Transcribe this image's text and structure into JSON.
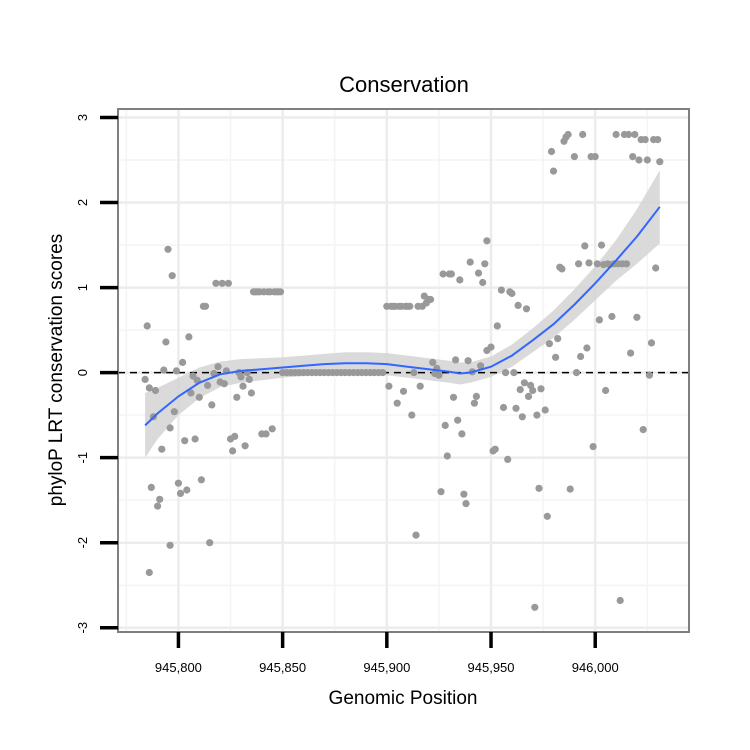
{
  "chart_data": {
    "type": "scatter",
    "title": "Conservation",
    "xlabel": "Genomic Position",
    "ylabel": "phyloP LRT conservation scores",
    "xlim": [
      945771,
      946045
    ],
    "ylim": [
      -3.05,
      3.1
    ],
    "x_ticks": [
      {
        "value": 945800,
        "label": "945,800"
      },
      {
        "value": 945850,
        "label": "945,850"
      },
      {
        "value": 945900,
        "label": "945,900"
      },
      {
        "value": 945950,
        "label": "945,950"
      },
      {
        "value": 946000,
        "label": "946,000"
      }
    ],
    "y_ticks": [
      {
        "value": 3,
        "label": "3"
      },
      {
        "value": 2,
        "label": "2"
      },
      {
        "value": 1,
        "label": "1"
      },
      {
        "value": 0,
        "label": "0"
      },
      {
        "value": -1,
        "label": "-1"
      },
      {
        "value": -2,
        "label": "-2"
      },
      {
        "value": -3,
        "label": "-3"
      }
    ],
    "x_minor_gridlines": [
      945775,
      945825,
      945875,
      945925,
      945975,
      946025
    ],
    "y_minor_gridlines": [
      2.5,
      1.5,
      0.5,
      -0.5,
      -1.5,
      -2.5
    ],
    "reference_line": {
      "y": 0,
      "style": "dashed",
      "color": "#000000"
    },
    "point_color": "#999999",
    "fit_color": "#3366ff",
    "band_color": "#d3d3d3",
    "points": [
      [
        945784,
        -0.08
      ],
      [
        945785,
        0.55
      ],
      [
        945786,
        -0.18
      ],
      [
        945786,
        -2.35
      ],
      [
        945787,
        -1.35
      ],
      [
        945788,
        -0.52
      ],
      [
        945789,
        -0.21
      ],
      [
        945790,
        -1.57
      ],
      [
        945791,
        -1.49
      ],
      [
        945792,
        -0.9
      ],
      [
        945793,
        0.03
      ],
      [
        945794,
        0.36
      ],
      [
        945795,
        1.45
      ],
      [
        945796,
        -0.65
      ],
      [
        945796,
        -2.03
      ],
      [
        945797,
        1.14
      ],
      [
        945798,
        -0.46
      ],
      [
        945799,
        0.02
      ],
      [
        945800,
        -1.3
      ],
      [
        945801,
        -1.42
      ],
      [
        945802,
        0.12
      ],
      [
        945803,
        -0.8
      ],
      [
        945804,
        -1.38
      ],
      [
        945805,
        0.42
      ],
      [
        945806,
        -0.24
      ],
      [
        945807,
        -0.04
      ],
      [
        945808,
        -0.78
      ],
      [
        945809,
        -0.09
      ],
      [
        945810,
        -0.29
      ],
      [
        945811,
        -1.26
      ],
      [
        945812,
        0.78
      ],
      [
        945813,
        0.78
      ],
      [
        945814,
        -0.15
      ],
      [
        945815,
        -2.0
      ],
      [
        945816,
        -0.38
      ],
      [
        945817,
        -0.01
      ],
      [
        945818,
        1.05
      ],
      [
        945819,
        0.07
      ],
      [
        945820,
        -0.11
      ],
      [
        945821,
        1.05
      ],
      [
        945822,
        -0.13
      ],
      [
        945823,
        0.02
      ],
      [
        945824,
        1.05
      ],
      [
        945825,
        -0.78
      ],
      [
        945826,
        -0.92
      ],
      [
        945827,
        -0.75
      ],
      [
        945828,
        -0.29
      ],
      [
        945829,
        0.0
      ],
      [
        945830,
        -0.05
      ],
      [
        945831,
        -0.16
      ],
      [
        945832,
        -0.86
      ],
      [
        945833,
        0.0
      ],
      [
        945834,
        -0.08
      ],
      [
        945835,
        -0.24
      ],
      [
        945836,
        0.95
      ],
      [
        945837,
        0.95
      ],
      [
        945838,
        0.95
      ],
      [
        945839,
        0.95
      ],
      [
        945840,
        -0.72
      ],
      [
        945841,
        0.95
      ],
      [
        945842,
        -0.72
      ],
      [
        945843,
        0.95
      ],
      [
        945844,
        0.95
      ],
      [
        945845,
        -0.66
      ],
      [
        945846,
        0.95
      ],
      [
        945847,
        0.95
      ],
      [
        945848,
        0.95
      ],
      [
        945849,
        0.95
      ],
      [
        945850,
        0.0
      ],
      [
        945852,
        0.0
      ],
      [
        945854,
        0.0
      ],
      [
        945856,
        0.0
      ],
      [
        945858,
        0.0
      ],
      [
        945860,
        0.0
      ],
      [
        945862,
        0.0
      ],
      [
        945864,
        0.0
      ],
      [
        945866,
        0.0
      ],
      [
        945868,
        0.0
      ],
      [
        945870,
        0.0
      ],
      [
        945872,
        0.0
      ],
      [
        945874,
        0.0
      ],
      [
        945876,
        0.0
      ],
      [
        945878,
        0.0
      ],
      [
        945880,
        0.0
      ],
      [
        945882,
        0.0
      ],
      [
        945884,
        0.0
      ],
      [
        945886,
        0.0
      ],
      [
        945888,
        0.0
      ],
      [
        945890,
        0.0
      ],
      [
        945892,
        0.0
      ],
      [
        945894,
        0.0
      ],
      [
        945896,
        0.0
      ],
      [
        945898,
        0.0
      ],
      [
        945900,
        0.78
      ],
      [
        945901,
        -0.16
      ],
      [
        945902,
        0.78
      ],
      [
        945903,
        0.78
      ],
      [
        945904,
        0.78
      ],
      [
        945905,
        -0.36
      ],
      [
        945906,
        0.78
      ],
      [
        945907,
        0.78
      ],
      [
        945908,
        -0.22
      ],
      [
        945909,
        0.78
      ],
      [
        945910,
        0.78
      ],
      [
        945911,
        0.78
      ],
      [
        945912,
        -0.5
      ],
      [
        945913,
        0.0
      ],
      [
        945914,
        -1.91
      ],
      [
        945915,
        0.78
      ],
      [
        945916,
        -0.16
      ],
      [
        945917,
        0.78
      ],
      [
        945918,
        0.9
      ],
      [
        945919,
        0.82
      ],
      [
        945920,
        0.86
      ],
      [
        945921,
        0.86
      ],
      [
        945922,
        0.12
      ],
      [
        945923,
        -0.01
      ],
      [
        945924,
        0.05
      ],
      [
        945925,
        -0.03
      ],
      [
        945926,
        -1.4
      ],
      [
        945927,
        1.16
      ],
      [
        945928,
        -0.62
      ],
      [
        945929,
        -0.98
      ],
      [
        945930,
        1.16
      ],
      [
        945931,
        1.16
      ],
      [
        945932,
        -0.29
      ],
      [
        945933,
        0.15
      ],
      [
        945934,
        -0.56
      ],
      [
        945935,
        1.09
      ],
      [
        945936,
        -0.72
      ],
      [
        945937,
        -1.43
      ],
      [
        945938,
        -1.54
      ],
      [
        945939,
        0.14
      ],
      [
        945940,
        1.3
      ],
      [
        945941,
        0.01
      ],
      [
        945942,
        -0.36
      ],
      [
        945943,
        -0.28
      ],
      [
        945944,
        1.17
      ],
      [
        945945,
        0.08
      ],
      [
        945946,
        1.06
      ],
      [
        945947,
        1.28
      ],
      [
        945948,
        0.26
      ],
      [
        945948,
        1.55
      ],
      [
        945950,
        0.3
      ],
      [
        945951,
        -0.92
      ],
      [
        945952,
        -0.9
      ],
      [
        945953,
        0.55
      ],
      [
        945955,
        0.97
      ],
      [
        945956,
        -0.41
      ],
      [
        945957,
        0.0
      ],
      [
        945958,
        -1.02
      ],
      [
        945959,
        0.95
      ],
      [
        945960,
        0.93
      ],
      [
        945961,
        0.0
      ],
      [
        945962,
        -0.42
      ],
      [
        945963,
        0.79
      ],
      [
        945964,
        -0.2
      ],
      [
        945965,
        -0.52
      ],
      [
        945966,
        -0.12
      ],
      [
        945967,
        0.75
      ],
      [
        945968,
        -0.28
      ],
      [
        945969,
        -0.15
      ],
      [
        945970,
        -0.21
      ],
      [
        945971,
        -2.76
      ],
      [
        945972,
        -0.5
      ],
      [
        945973,
        -1.36
      ],
      [
        945974,
        -0.19
      ],
      [
        945976,
        -0.44
      ],
      [
        945977,
        -1.69
      ],
      [
        945978,
        0.34
      ],
      [
        945979,
        2.6
      ],
      [
        945980,
        2.37
      ],
      [
        945981,
        0.18
      ],
      [
        945982,
        0.4
      ],
      [
        945983,
        1.24
      ],
      [
        945984,
        1.22
      ],
      [
        945985,
        2.72
      ],
      [
        945986,
        2.77
      ],
      [
        945987,
        2.8
      ],
      [
        945988,
        -1.37
      ],
      [
        945990,
        2.54
      ],
      [
        945991,
        0.0
      ],
      [
        945992,
        1.28
      ],
      [
        945993,
        0.19
      ],
      [
        945994,
        2.8
      ],
      [
        945995,
        1.49
      ],
      [
        945996,
        0.29
      ],
      [
        945997,
        1.29
      ],
      [
        945998,
        2.54
      ],
      [
        945999,
        -0.87
      ],
      [
        946000,
        2.54
      ],
      [
        946001,
        1.28
      ],
      [
        946002,
        0.62
      ],
      [
        946003,
        1.5
      ],
      [
        946004,
        1.27
      ],
      [
        946005,
        -0.21
      ],
      [
        946006,
        1.28
      ],
      [
        946007,
        1.27
      ],
      [
        946008,
        0.66
      ],
      [
        946009,
        1.28
      ],
      [
        946010,
        2.8
      ],
      [
        946011,
        1.28
      ],
      [
        946012,
        -2.68
      ],
      [
        946013,
        1.28
      ],
      [
        946014,
        2.8
      ],
      [
        946015,
        1.28
      ],
      [
        946016,
        2.8
      ],
      [
        946017,
        0.23
      ],
      [
        946018,
        2.54
      ],
      [
        946019,
        2.8
      ],
      [
        946020,
        0.65
      ],
      [
        946021,
        2.5
      ],
      [
        946022,
        2.74
      ],
      [
        946023,
        -0.67
      ],
      [
        946024,
        2.74
      ],
      [
        946025,
        2.5
      ],
      [
        946026,
        -0.03
      ],
      [
        946027,
        0.35
      ],
      [
        946028,
        2.74
      ],
      [
        946029,
        1.23
      ],
      [
        946030,
        2.74
      ],
      [
        946031,
        2.48
      ]
    ],
    "fit": [
      [
        945784,
        -0.62
      ],
      [
        945790,
        -0.48
      ],
      [
        945800,
        -0.28
      ],
      [
        945810,
        -0.12
      ],
      [
        945820,
        -0.02
      ],
      [
        945830,
        0.02
      ],
      [
        945840,
        0.04
      ],
      [
        945850,
        0.06
      ],
      [
        945860,
        0.08
      ],
      [
        945870,
        0.1
      ],
      [
        945880,
        0.11
      ],
      [
        945890,
        0.11
      ],
      [
        945900,
        0.1
      ],
      [
        945910,
        0.07
      ],
      [
        945920,
        0.04
      ],
      [
        945930,
        0.01
      ],
      [
        945935,
        -0.01
      ],
      [
        945940,
        0.0
      ],
      [
        945950,
        0.07
      ],
      [
        945960,
        0.2
      ],
      [
        945970,
        0.38
      ],
      [
        945980,
        0.57
      ],
      [
        945990,
        0.8
      ],
      [
        946000,
        1.05
      ],
      [
        946010,
        1.32
      ],
      [
        946020,
        1.6
      ],
      [
        946031,
        1.95
      ]
    ],
    "band_upper": [
      [
        945784,
        -0.24
      ],
      [
        945790,
        -0.18
      ],
      [
        945800,
        -0.06
      ],
      [
        945810,
        0.06
      ],
      [
        945820,
        0.13
      ],
      [
        945830,
        0.16
      ],
      [
        945840,
        0.17
      ],
      [
        945850,
        0.18
      ],
      [
        945860,
        0.2
      ],
      [
        945870,
        0.22
      ],
      [
        945880,
        0.24
      ],
      [
        945890,
        0.24
      ],
      [
        945900,
        0.23
      ],
      [
        945910,
        0.2
      ],
      [
        945920,
        0.17
      ],
      [
        945930,
        0.14
      ],
      [
        945935,
        0.12
      ],
      [
        945940,
        0.12
      ],
      [
        945950,
        0.19
      ],
      [
        945960,
        0.33
      ],
      [
        945970,
        0.52
      ],
      [
        945980,
        0.73
      ],
      [
        945990,
        0.98
      ],
      [
        946000,
        1.25
      ],
      [
        946010,
        1.56
      ],
      [
        946020,
        1.92
      ],
      [
        946031,
        2.38
      ]
    ],
    "band_lower": [
      [
        945784,
        -1.0
      ],
      [
        945790,
        -0.78
      ],
      [
        945800,
        -0.5
      ],
      [
        945810,
        -0.3
      ],
      [
        945820,
        -0.17
      ],
      [
        945830,
        -0.12
      ],
      [
        945840,
        -0.09
      ],
      [
        945850,
        -0.06
      ],
      [
        945860,
        -0.04
      ],
      [
        945870,
        -0.02
      ],
      [
        945880,
        -0.02
      ],
      [
        945890,
        -0.02
      ],
      [
        945900,
        -0.03
      ],
      [
        945910,
        -0.06
      ],
      [
        945920,
        -0.09
      ],
      [
        945930,
        -0.12
      ],
      [
        945935,
        -0.14
      ],
      [
        945940,
        -0.12
      ],
      [
        945950,
        -0.05
      ],
      [
        945960,
        0.07
      ],
      [
        945970,
        0.24
      ],
      [
        945980,
        0.41
      ],
      [
        945990,
        0.62
      ],
      [
        946000,
        0.85
      ],
      [
        946010,
        1.08
      ],
      [
        946020,
        1.28
      ],
      [
        946031,
        1.52
      ]
    ]
  }
}
